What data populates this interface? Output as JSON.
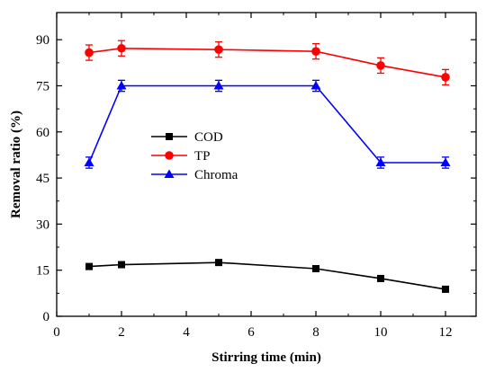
{
  "chart_data": {
    "type": "line",
    "xlabel": "Stirring time (min)",
    "ylabel": "Removal ratio (%)",
    "xlim": [
      0,
      13
    ],
    "ylim": [
      0,
      95
    ],
    "xticks": [
      0,
      2,
      4,
      6,
      8,
      10,
      12
    ],
    "yticks": [
      0,
      15,
      30,
      45,
      60,
      75,
      90
    ],
    "x": [
      1,
      2,
      5,
      8,
      10,
      12
    ],
    "grid": false,
    "legend": "center-left",
    "series": [
      {
        "name": "COD",
        "values": [
          16.2,
          16.8,
          17.5,
          15.5,
          12.3,
          8.8
        ],
        "errors": [
          0,
          0,
          0,
          0,
          0,
          0
        ],
        "color": "#000000",
        "marker": "square"
      },
      {
        "name": "TP",
        "values": [
          85.8,
          87.2,
          86.8,
          86.2,
          81.6,
          77.8
        ],
        "errors": [
          2.5,
          2.5,
          2.5,
          2.5,
          2.5,
          2.5
        ],
        "color": "#ff0000",
        "marker": "circle"
      },
      {
        "name": "Chroma",
        "values": [
          50,
          75,
          75,
          75,
          50,
          50
        ],
        "errors": [
          1.8,
          1.8,
          1.8,
          1.8,
          1.8,
          1.8
        ],
        "color": "#0000ff",
        "marker": "triangle"
      }
    ]
  }
}
